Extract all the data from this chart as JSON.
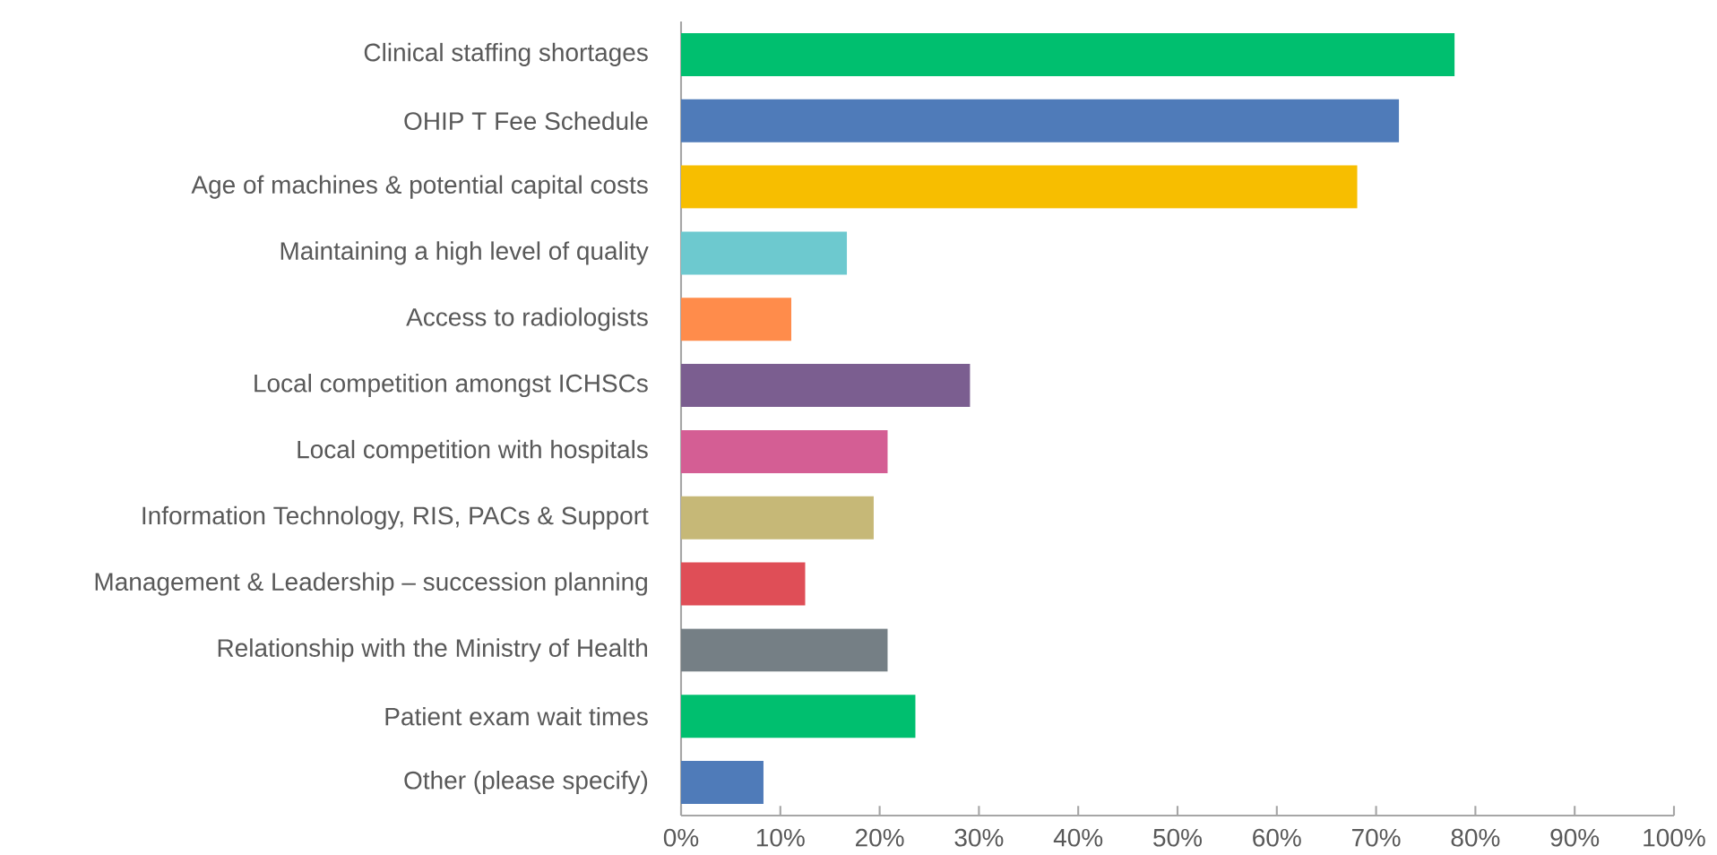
{
  "chart_data": {
    "type": "bar",
    "orientation": "horizontal",
    "categories": [
      "Clinical staffing shortages",
      "OHIP T Fee Schedule",
      "Age of machines & potential capital costs",
      "Maintaining a high level of quality",
      "Access to radiologists",
      "Local competition amongst ICHSCs",
      "Local competition with hospitals",
      "Information Technology, RIS, PACs & Support",
      "Management & Leadership – succession planning",
      "Relationship with the Ministry of Health",
      "Patient exam wait times",
      "Other (please specify)"
    ],
    "values": [
      77.9,
      72.3,
      68.1,
      16.7,
      11.1,
      29.1,
      20.8,
      19.4,
      12.5,
      20.8,
      23.6,
      8.3
    ],
    "colors": [
      "#00bf6f",
      "#4f7bb9",
      "#f7be00",
      "#6dc9cf",
      "#ff8c4b",
      "#7b5e90",
      "#d45e94",
      "#c6b877",
      "#df4e57",
      "#757f85",
      "#00bf6f",
      "#4f7bb9"
    ],
    "xlim": [
      0,
      100
    ],
    "xticks": [
      {
        "value": 0,
        "label": "0%"
      },
      {
        "value": 10,
        "label": "10%"
      },
      {
        "value": 20,
        "label": "20%"
      },
      {
        "value": 30,
        "label": "30%"
      },
      {
        "value": 40,
        "label": "40%"
      },
      {
        "value": 50,
        "label": "50%"
      },
      {
        "value": 60,
        "label": "60%"
      },
      {
        "value": 70,
        "label": "70%"
      },
      {
        "value": 80,
        "label": "80%"
      },
      {
        "value": 90,
        "label": "90%"
      },
      {
        "value": 100,
        "label": "100%"
      }
    ],
    "grid": false
  }
}
